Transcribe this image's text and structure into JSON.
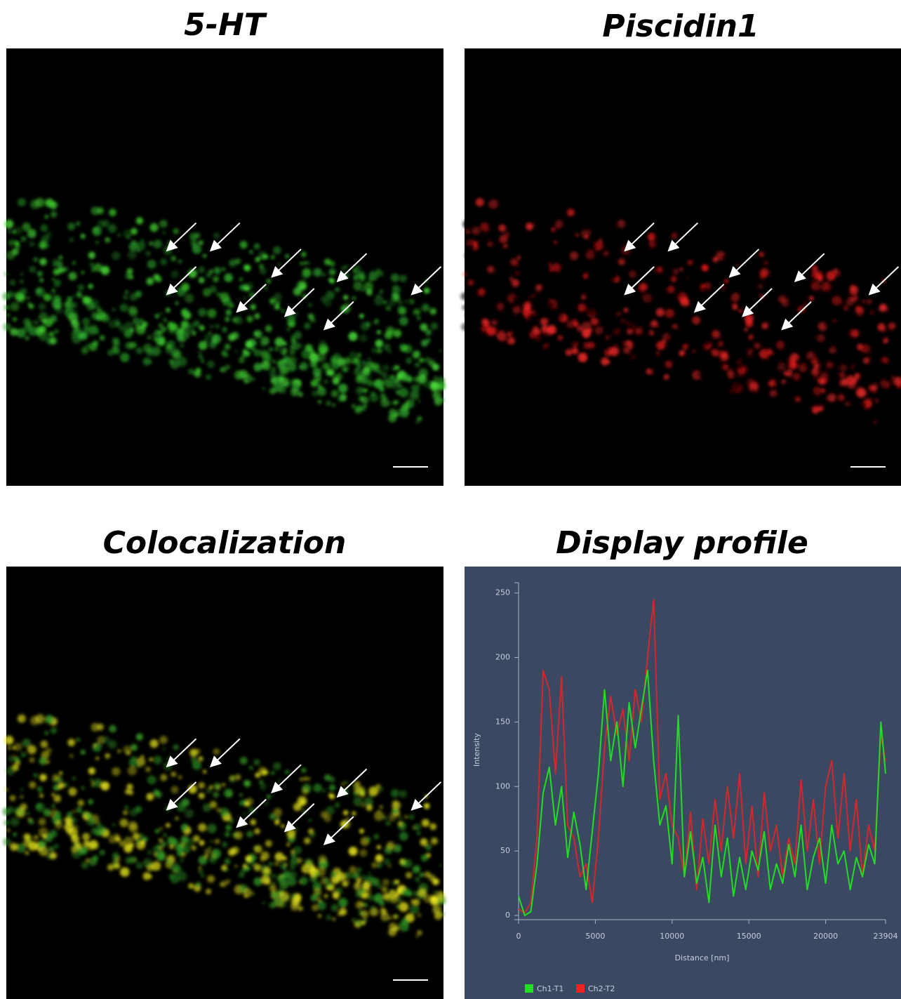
{
  "panels": [
    {
      "title": "5-HT"
    },
    {
      "title": "Piscidin1"
    },
    {
      "title": "Colocalization"
    }
  ],
  "chart_data": {
    "type": "line",
    "title": "Display profile",
    "xlabel": "Distance [nm]",
    "ylabel": "Intensity",
    "x": [
      0,
      400,
      800,
      1200,
      1600,
      2000,
      2400,
      2800,
      3200,
      3600,
      4000,
      4400,
      4800,
      5200,
      5600,
      6000,
      6400,
      6800,
      7200,
      7600,
      8000,
      8400,
      8800,
      9200,
      9600,
      10000,
      10400,
      10800,
      11200,
      11600,
      12000,
      12400,
      12800,
      13200,
      13600,
      14000,
      14400,
      14800,
      15200,
      15600,
      16000,
      16400,
      16800,
      17200,
      17600,
      18000,
      18400,
      18800,
      19200,
      19600,
      20000,
      20400,
      20800,
      21200,
      21600,
      22000,
      22400,
      22800,
      23200,
      23600,
      23904
    ],
    "series": [
      {
        "name": "Ch1-T1",
        "color": "#22dd22",
        "values": [
          15,
          0,
          3,
          40,
          95,
          115,
          70,
          100,
          45,
          80,
          55,
          20,
          65,
          110,
          175,
          120,
          150,
          100,
          165,
          130,
          160,
          190,
          120,
          70,
          85,
          40,
          155,
          30,
          65,
          25,
          45,
          10,
          70,
          30,
          60,
          15,
          45,
          20,
          50,
          35,
          65,
          20,
          40,
          25,
          55,
          30,
          70,
          20,
          45,
          60,
          25,
          70,
          40,
          50,
          20,
          45,
          30,
          55,
          40,
          150,
          110
        ]
      },
      {
        "name": "Ch2-T2",
        "color": "#ee2222",
        "values": [
          5,
          2,
          10,
          60,
          190,
          175,
          110,
          185,
          70,
          60,
          30,
          40,
          10,
          60,
          130,
          170,
          140,
          160,
          120,
          175,
          150,
          200,
          245,
          90,
          110,
          70,
          60,
          30,
          80,
          20,
          75,
          40,
          90,
          50,
          100,
          60,
          110,
          40,
          85,
          30,
          95,
          50,
          70,
          30,
          60,
          40,
          105,
          50,
          90,
          40,
          100,
          120,
          60,
          110,
          50,
          90,
          30,
          70,
          50,
          140,
          120
        ]
      }
    ],
    "xlim": [
      0,
      23904
    ],
    "xticks": [
      0,
      5000,
      10000,
      15000,
      20000,
      23904
    ],
    "ylim": [
      0,
      258
    ],
    "yticks": [
      0,
      50,
      100,
      150,
      200,
      250
    ]
  }
}
